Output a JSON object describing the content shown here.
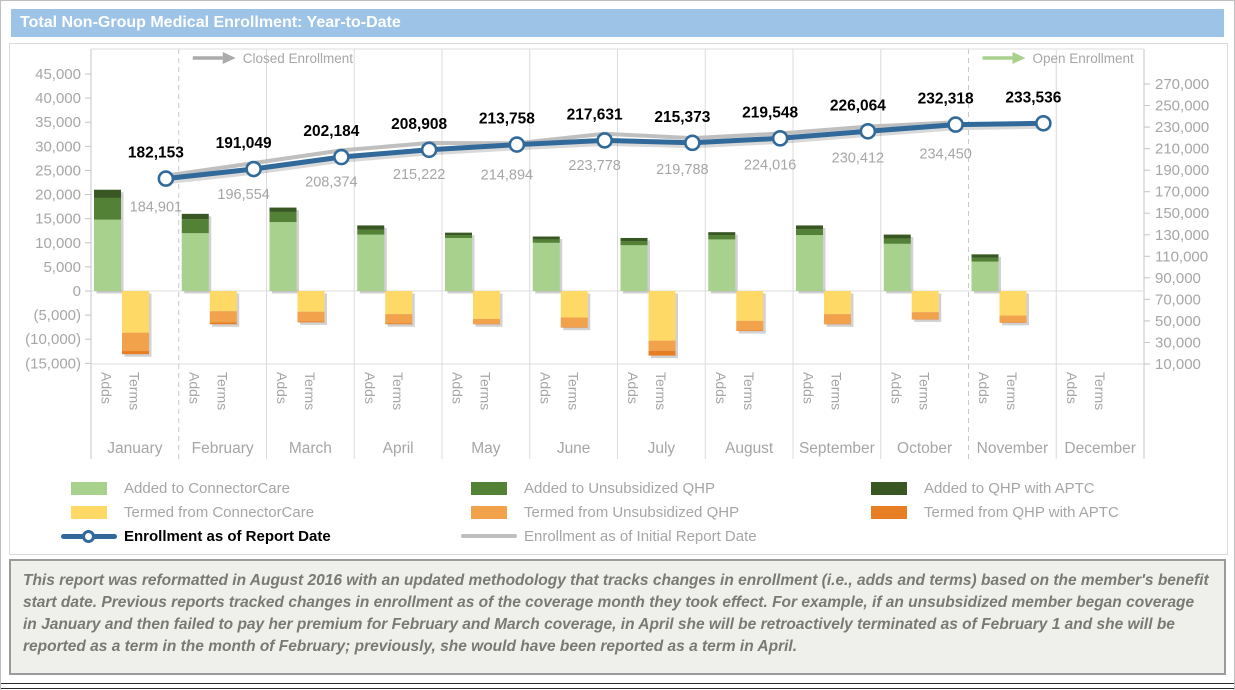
{
  "title": "Total Non-Group Medical Enrollment: Year-to-Date",
  "colors": {
    "title_bar": "#9DC3E6",
    "title_text": "#FFFFFF",
    "axis_text": "#A6A6A6",
    "data_label": "#000000",
    "footnote_text": "#7A7A74"
  },
  "annotations": {
    "closed_label": "Closed Enrollment",
    "closed_arrow_color": "#ABABAB",
    "open_label": "Open Enrollment",
    "open_arrow_color": "#A9D18E"
  },
  "chart_data": {
    "type": "combo-stacked-bar-line",
    "months": [
      "January",
      "February",
      "March",
      "April",
      "May",
      "June",
      "July",
      "August",
      "September",
      "October",
      "November",
      "December"
    ],
    "sub_labels": [
      "Adds",
      "Terms"
    ],
    "left_axis": {
      "min": -15000,
      "max": 45000,
      "step": 5000
    },
    "right_axis": {
      "min": 10000,
      "max": 270000,
      "step": 20000
    },
    "dashed_separator_after": [
      "January",
      "October"
    ],
    "series": [
      {
        "name": "Added to ConnectorCare",
        "type": "bar",
        "stack": "adds",
        "color": "#A9D18E",
        "values": [
          14800,
          12000,
          14300,
          11700,
          11000,
          10000,
          9500,
          10700,
          11600,
          9800,
          6100,
          null
        ]
      },
      {
        "name": "Added to Unsubsidized QHP",
        "type": "bar",
        "stack": "adds",
        "color": "#538135",
        "values": [
          4500,
          2900,
          2100,
          1000,
          600,
          700,
          800,
          900,
          1200,
          1100,
          800,
          null
        ]
      },
      {
        "name": "Added to QHP with APTC",
        "type": "bar",
        "stack": "adds",
        "color": "#385723",
        "values": [
          1700,
          1100,
          900,
          900,
          500,
          600,
          700,
          600,
          800,
          800,
          700,
          null
        ]
      },
      {
        "name": "Termed from ConnectorCare",
        "type": "bar",
        "stack": "terms",
        "color": "#FFD966",
        "values": [
          -8650,
          -4200,
          -4300,
          -4800,
          -5800,
          -5500,
          -10300,
          -6200,
          -4800,
          -4400,
          -5100,
          null
        ]
      },
      {
        "name": "Termed from Unsubsidized QHP",
        "type": "bar",
        "stack": "terms",
        "color": "#F2A24B",
        "values": [
          -3800,
          -2300,
          -2000,
          -1900,
          -1000,
          -2000,
          -2100,
          -2000,
          -2000,
          -1400,
          -1400,
          null
        ]
      },
      {
        "name": "Termed from QHP with APTC",
        "type": "bar",
        "stack": "terms",
        "color": "#E87E23",
        "values": [
          -650,
          -400,
          -200,
          -200,
          -100,
          -100,
          -1000,
          -100,
          -100,
          -100,
          -100,
          null
        ]
      },
      {
        "name": "Enrollment as of Report Date",
        "type": "line",
        "color": "#316A9A",
        "marker": true,
        "legend_text_color": "#000000",
        "values": [
          182153,
          191049,
          202184,
          208908,
          213758,
          217631,
          215373,
          219548,
          226064,
          232318,
          233536,
          null
        ]
      },
      {
        "name": "Enrollment as of Initial Report Date",
        "type": "line",
        "color": "#BFBFBF",
        "values": [
          184901,
          196554,
          208374,
          215222,
          214894,
          223778,
          219788,
          224016,
          230412,
          234450,
          null,
          null
        ]
      }
    ]
  },
  "footnote": "This report was reformatted in August 2016 with an updated methodology that tracks changes in enrollment (i.e., adds and terms) based on the member's benefit start date.  Previous reports tracked changes in enrollment as of the coverage month they took effect.  For example, if an unsubsidized member began coverage in January and then failed to pay her premium for February and March coverage, in April she will be retroactively terminated as of February 1 and she will be reported as a term in the month of February; previously, she would have been reported as a term in April."
}
